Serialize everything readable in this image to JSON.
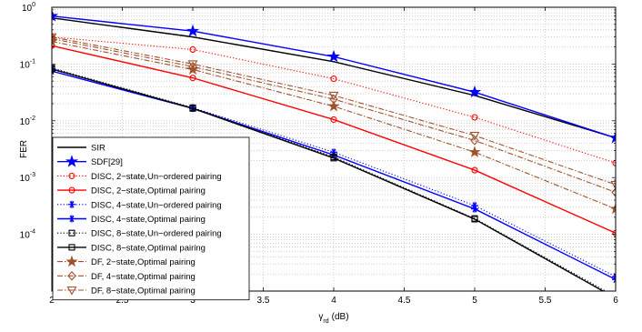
{
  "chart_data": {
    "type": "line",
    "title": "",
    "xlabel": "γrd (dB)",
    "xlabel_parts": {
      "symbol": "γ",
      "sub": "rd",
      "unit": "(dB)"
    },
    "ylabel": "FER",
    "xlim": [
      2,
      6
    ],
    "ylim": [
      1e-05,
      1
    ],
    "yscale": "log",
    "grid": true,
    "legend_position": "bottom-left",
    "x_ticks": [
      "2",
      "2.5",
      "3",
      "3.5",
      "4",
      "4.5",
      "5",
      "5.5",
      "6"
    ],
    "y_ticks": [
      {
        "value": 1,
        "base": "10",
        "exp": "0"
      },
      {
        "value": 0.1,
        "base": "10",
        "exp": "-1"
      },
      {
        "value": 0.01,
        "base": "10",
        "exp": "-2"
      },
      {
        "value": 0.001,
        "base": "10",
        "exp": "-3"
      },
      {
        "value": 0.0001,
        "base": "10",
        "exp": "-4"
      }
    ],
    "x": [
      2,
      3,
      4,
      5,
      6
    ],
    "series": [
      {
        "name": "SIR",
        "color": "#000000",
        "line": "solid",
        "marker": "none",
        "values": [
          0.65,
          0.3,
          0.11,
          0.028,
          0.005
        ]
      },
      {
        "name": "SDF[29]",
        "color": "#0000ff",
        "line": "solid",
        "marker": "star",
        "values": [
          0.7,
          0.38,
          0.135,
          0.032,
          0.005
        ]
      },
      {
        "name": "DISC, 2−state,Un−ordered pairing",
        "color": "#ff0000",
        "line": "dotted",
        "marker": "circle",
        "values": [
          0.3,
          0.18,
          0.055,
          0.0115,
          0.0018
        ]
      },
      {
        "name": "DISC, 2−state,Optimal pairing",
        "color": "#ff0000",
        "line": "solid",
        "marker": "circle",
        "values": [
          0.21,
          0.057,
          0.0105,
          0.00135,
          0.000105
        ]
      },
      {
        "name": "DISC, 4−state,Un−ordered pairing",
        "color": "#0000ff",
        "line": "dotted",
        "marker": "asterisk",
        "values": [
          0.08,
          0.017,
          0.0028,
          0.00032,
          1.8e-05
        ]
      },
      {
        "name": "DISC, 4−state,Optimal pairing",
        "color": "#0000ff",
        "line": "solid",
        "marker": "asterisk",
        "values": [
          0.075,
          0.0165,
          0.0025,
          0.00028,
          1.6e-05
        ]
      },
      {
        "name": "DISC, 8−state,Un−ordered pairing",
        "color": "#000000",
        "line": "dotted",
        "marker": "square",
        "values": [
          0.085,
          0.017,
          0.0023,
          0.00019,
          8e-06
        ]
      },
      {
        "name": "DISC, 8−state,Optimal pairing",
        "color": "#000000",
        "line": "solid",
        "marker": "square",
        "values": [
          0.082,
          0.0165,
          0.0022,
          0.000185,
          7.5e-06
        ]
      },
      {
        "name": "DF, 2−state,Optimal pairing",
        "color": "#a0522d",
        "line": "dashdot",
        "marker": "pentagram",
        "values": [
          0.25,
          0.08,
          0.018,
          0.0028,
          0.00028
        ]
      },
      {
        "name": "DF, 4−state,Optimal pairing",
        "color": "#a0522d",
        "line": "dashdot",
        "marker": "diamond",
        "values": [
          0.28,
          0.09,
          0.024,
          0.0045,
          0.00055
        ]
      },
      {
        "name": "DF, 8−state,Optimal pairing",
        "color": "#a0522d",
        "line": "dashdot",
        "marker": "triangle-down",
        "values": [
          0.3,
          0.1,
          0.028,
          0.0055,
          0.00075
        ]
      }
    ]
  }
}
